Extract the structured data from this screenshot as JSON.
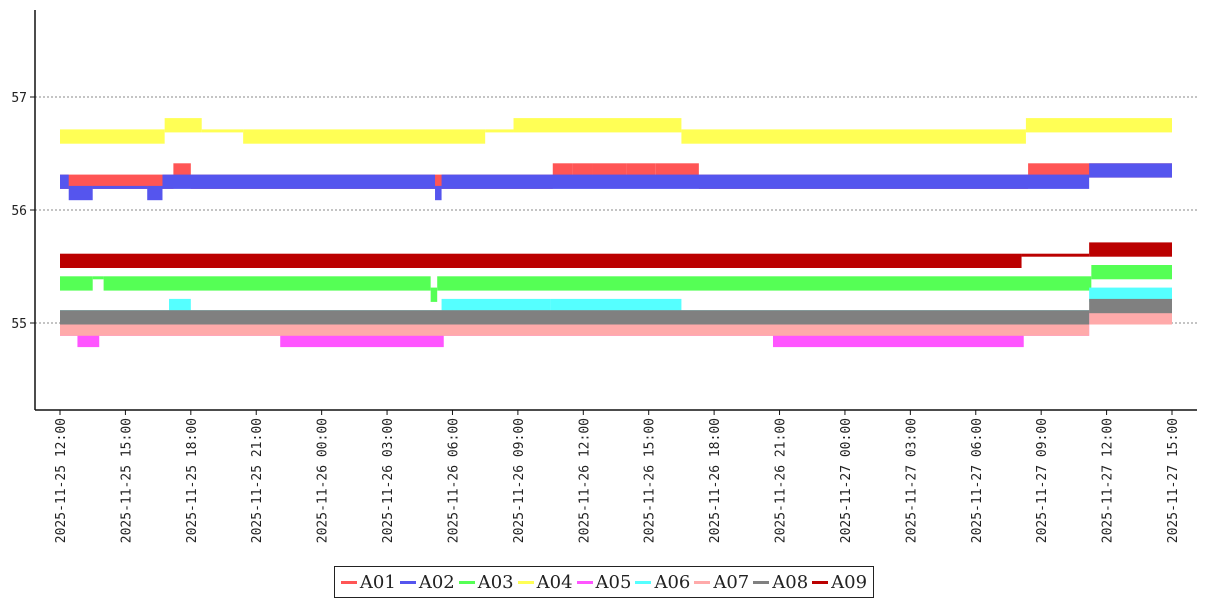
{
  "chart_data": {
    "type": "line",
    "title": "",
    "xlabel": "",
    "ylabel": "",
    "ylim": [
      54.2,
      57.8
    ],
    "xlim_hours": [
      -0.2,
      51.3
    ],
    "yticks": [
      {
        "value": 55,
        "label": "55"
      },
      {
        "value": 56,
        "label": "56"
      },
      {
        "value": 57,
        "label": "57"
      }
    ],
    "xticks": [
      {
        "hour": 0,
        "label": "2025-11-25 12:00"
      },
      {
        "hour": 3,
        "label": "2025-11-25 15:00"
      },
      {
        "hour": 6,
        "label": "2025-11-25 18:00"
      },
      {
        "hour": 9,
        "label": "2025-11-25 21:00"
      },
      {
        "hour": 12,
        "label": "2025-11-26 00:00"
      },
      {
        "hour": 15,
        "label": "2025-11-26 03:00"
      },
      {
        "hour": 18,
        "label": "2025-11-26 06:00"
      },
      {
        "hour": 21,
        "label": "2025-11-26 09:00"
      },
      {
        "hour": 24,
        "label": "2025-11-26 12:00"
      },
      {
        "hour": 27,
        "label": "2025-11-26 15:00"
      },
      {
        "hour": 30,
        "label": "2025-11-26 18:00"
      },
      {
        "hour": 33,
        "label": "2025-11-26 21:00"
      },
      {
        "hour": 36,
        "label": "2025-11-27 00:00"
      },
      {
        "hour": 39,
        "label": "2025-11-27 03:00"
      },
      {
        "hour": 42,
        "label": "2025-11-27 06:00"
      },
      {
        "hour": 45,
        "label": "2025-11-27 09:00"
      },
      {
        "hour": 48,
        "label": "2025-11-27 12:00"
      },
      {
        "hour": 51,
        "label": "2025-11-27 15:00"
      }
    ],
    "grid": "horizontal dotted",
    "legend_position": "bottom-center",
    "series": [
      {
        "name": "A01",
        "color": "#ff5555",
        "segments": [
          {
            "x0": 0.0,
            "x1": 5.2,
            "y0": 56.2,
            "y1": 56.3
          },
          {
            "x0": 5.2,
            "x1": 6.0,
            "y0": 56.3,
            "y1": 56.4
          },
          {
            "x0": 6.0,
            "x1": 22.6,
            "y0": 56.2,
            "y1": 56.3
          },
          {
            "x0": 22.6,
            "x1": 23.5,
            "y0": 56.3,
            "y1": 56.4
          },
          {
            "x0": 23.5,
            "x1": 24.4,
            "y0": 56.3,
            "y1": 56.4
          },
          {
            "x0": 24.4,
            "x1": 26.0,
            "y0": 56.3,
            "y1": 56.4
          },
          {
            "x0": 26.0,
            "x1": 27.3,
            "y0": 56.3,
            "y1": 56.4
          },
          {
            "x0": 27.3,
            "x1": 29.3,
            "y0": 56.3,
            "y1": 56.4
          },
          {
            "x0": 29.3,
            "x1": 44.4,
            "y0": 56.2,
            "y1": 56.3
          },
          {
            "x0": 44.4,
            "x1": 51.0,
            "y0": 56.3,
            "y1": 56.4
          }
        ]
      },
      {
        "name": "A02",
        "color": "#5555ee",
        "segments": [
          {
            "x0": 0.0,
            "x1": 0.4,
            "y0": 56.2,
            "y1": 56.3
          },
          {
            "x0": 0.4,
            "x1": 1.5,
            "y0": 56.1,
            "y1": 56.2
          },
          {
            "x0": 1.5,
            "x1": 4.0,
            "y0": 56.2,
            "y1": 56.2
          },
          {
            "x0": 4.0,
            "x1": 4.7,
            "y0": 56.1,
            "y1": 56.2
          },
          {
            "x0": 4.7,
            "x1": 17.2,
            "y0": 56.2,
            "y1": 56.3
          },
          {
            "x0": 17.2,
            "x1": 17.5,
            "y0": 56.1,
            "y1": 56.2
          },
          {
            "x0": 17.5,
            "x1": 47.2,
            "y0": 56.2,
            "y1": 56.3
          },
          {
            "x0": 47.2,
            "x1": 51.0,
            "y0": 56.3,
            "y1": 56.4
          }
        ]
      },
      {
        "name": "A03",
        "color": "#55ff55",
        "segments": [
          {
            "x0": 0.0,
            "x1": 1.5,
            "y0": 55.3,
            "y1": 55.4
          },
          {
            "x0": 1.5,
            "x1": 2.0,
            "y0": 55.4,
            "y1": 55.4
          },
          {
            "x0": 2.0,
            "x1": 17.0,
            "y0": 55.3,
            "y1": 55.4
          },
          {
            "x0": 17.0,
            "x1": 17.3,
            "y0": 55.2,
            "y1": 55.3
          },
          {
            "x0": 17.3,
            "x1": 47.3,
            "y0": 55.3,
            "y1": 55.4
          },
          {
            "x0": 47.3,
            "x1": 51.0,
            "y0": 55.4,
            "y1": 55.5
          }
        ]
      },
      {
        "name": "A04",
        "color": "#ffff55",
        "segments": [
          {
            "x0": 0.0,
            "x1": 4.8,
            "y0": 56.6,
            "y1": 56.7
          },
          {
            "x0": 4.8,
            "x1": 6.5,
            "y0": 56.7,
            "y1": 56.8
          },
          {
            "x0": 6.5,
            "x1": 8.4,
            "y0": 56.7,
            "y1": 56.7
          },
          {
            "x0": 8.4,
            "x1": 19.5,
            "y0": 56.6,
            "y1": 56.7
          },
          {
            "x0": 19.5,
            "x1": 20.8,
            "y0": 56.7,
            "y1": 56.7
          },
          {
            "x0": 20.8,
            "x1": 28.5,
            "y0": 56.7,
            "y1": 56.8
          },
          {
            "x0": 28.5,
            "x1": 44.3,
            "y0": 56.6,
            "y1": 56.7
          },
          {
            "x0": 44.3,
            "x1": 51.0,
            "y0": 56.7,
            "y1": 56.8
          }
        ]
      },
      {
        "name": "A05",
        "color": "#ff55ff",
        "segments": [
          {
            "x0": 0.0,
            "x1": 0.8,
            "y0": 54.9,
            "y1": 54.9
          },
          {
            "x0": 0.8,
            "x1": 1.8,
            "y0": 54.8,
            "y1": 54.9
          },
          {
            "x0": 1.8,
            "x1": 10.1,
            "y0": 54.9,
            "y1": 55.0
          },
          {
            "x0": 10.1,
            "x1": 17.6,
            "y0": 54.8,
            "y1": 54.9
          },
          {
            "x0": 17.6,
            "x1": 32.7,
            "y0": 54.9,
            "y1": 55.0
          },
          {
            "x0": 32.7,
            "x1": 44.2,
            "y0": 54.8,
            "y1": 54.9
          },
          {
            "x0": 44.2,
            "x1": 47.2,
            "y0": 54.9,
            "y1": 55.0
          },
          {
            "x0": 47.2,
            "x1": 51.0,
            "y0": 55.0,
            "y1": 55.1
          }
        ]
      },
      {
        "name": "A06",
        "color": "#55ffff",
        "segments": [
          {
            "x0": 0.0,
            "x1": 5.0,
            "y0": 55.1,
            "y1": 55.1
          },
          {
            "x0": 5.0,
            "x1": 6.0,
            "y0": 55.1,
            "y1": 55.2
          },
          {
            "x0": 6.0,
            "x1": 11.5,
            "y0": 55.1,
            "y1": 55.1
          },
          {
            "x0": 11.5,
            "x1": 17.5,
            "y0": 55.0,
            "y1": 55.1
          },
          {
            "x0": 17.5,
            "x1": 22.5,
            "y0": 55.1,
            "y1": 55.2
          },
          {
            "x0": 22.5,
            "x1": 28.5,
            "y0": 55.1,
            "y1": 55.2
          },
          {
            "x0": 28.5,
            "x1": 47.2,
            "y0": 55.0,
            "y1": 55.1
          },
          {
            "x0": 47.2,
            "x1": 51.0,
            "y0": 55.2,
            "y1": 55.3
          }
        ]
      },
      {
        "name": "A07",
        "color": "#ffaaaa",
        "segments": [
          {
            "x0": 0.0,
            "x1": 47.2,
            "y0": 54.9,
            "y1": 55.0
          },
          {
            "x0": 47.2,
            "x1": 51.0,
            "y0": 55.0,
            "y1": 55.1
          }
        ]
      },
      {
        "name": "A08",
        "color": "#808080",
        "segments": [
          {
            "x0": 0.0,
            "x1": 47.2,
            "y0": 55.0,
            "y1": 55.1
          },
          {
            "x0": 47.2,
            "x1": 51.0,
            "y0": 55.1,
            "y1": 55.2
          }
        ]
      },
      {
        "name": "A09",
        "color": "#bb0000",
        "segments": [
          {
            "x0": 0.0,
            "x1": 44.1,
            "y0": 55.5,
            "y1": 55.6
          },
          {
            "x0": 44.1,
            "x1": 47.2,
            "y0": 55.6,
            "y1": 55.6
          },
          {
            "x0": 47.2,
            "x1": 51.0,
            "y0": 55.6,
            "y1": 55.7
          }
        ]
      }
    ]
  }
}
